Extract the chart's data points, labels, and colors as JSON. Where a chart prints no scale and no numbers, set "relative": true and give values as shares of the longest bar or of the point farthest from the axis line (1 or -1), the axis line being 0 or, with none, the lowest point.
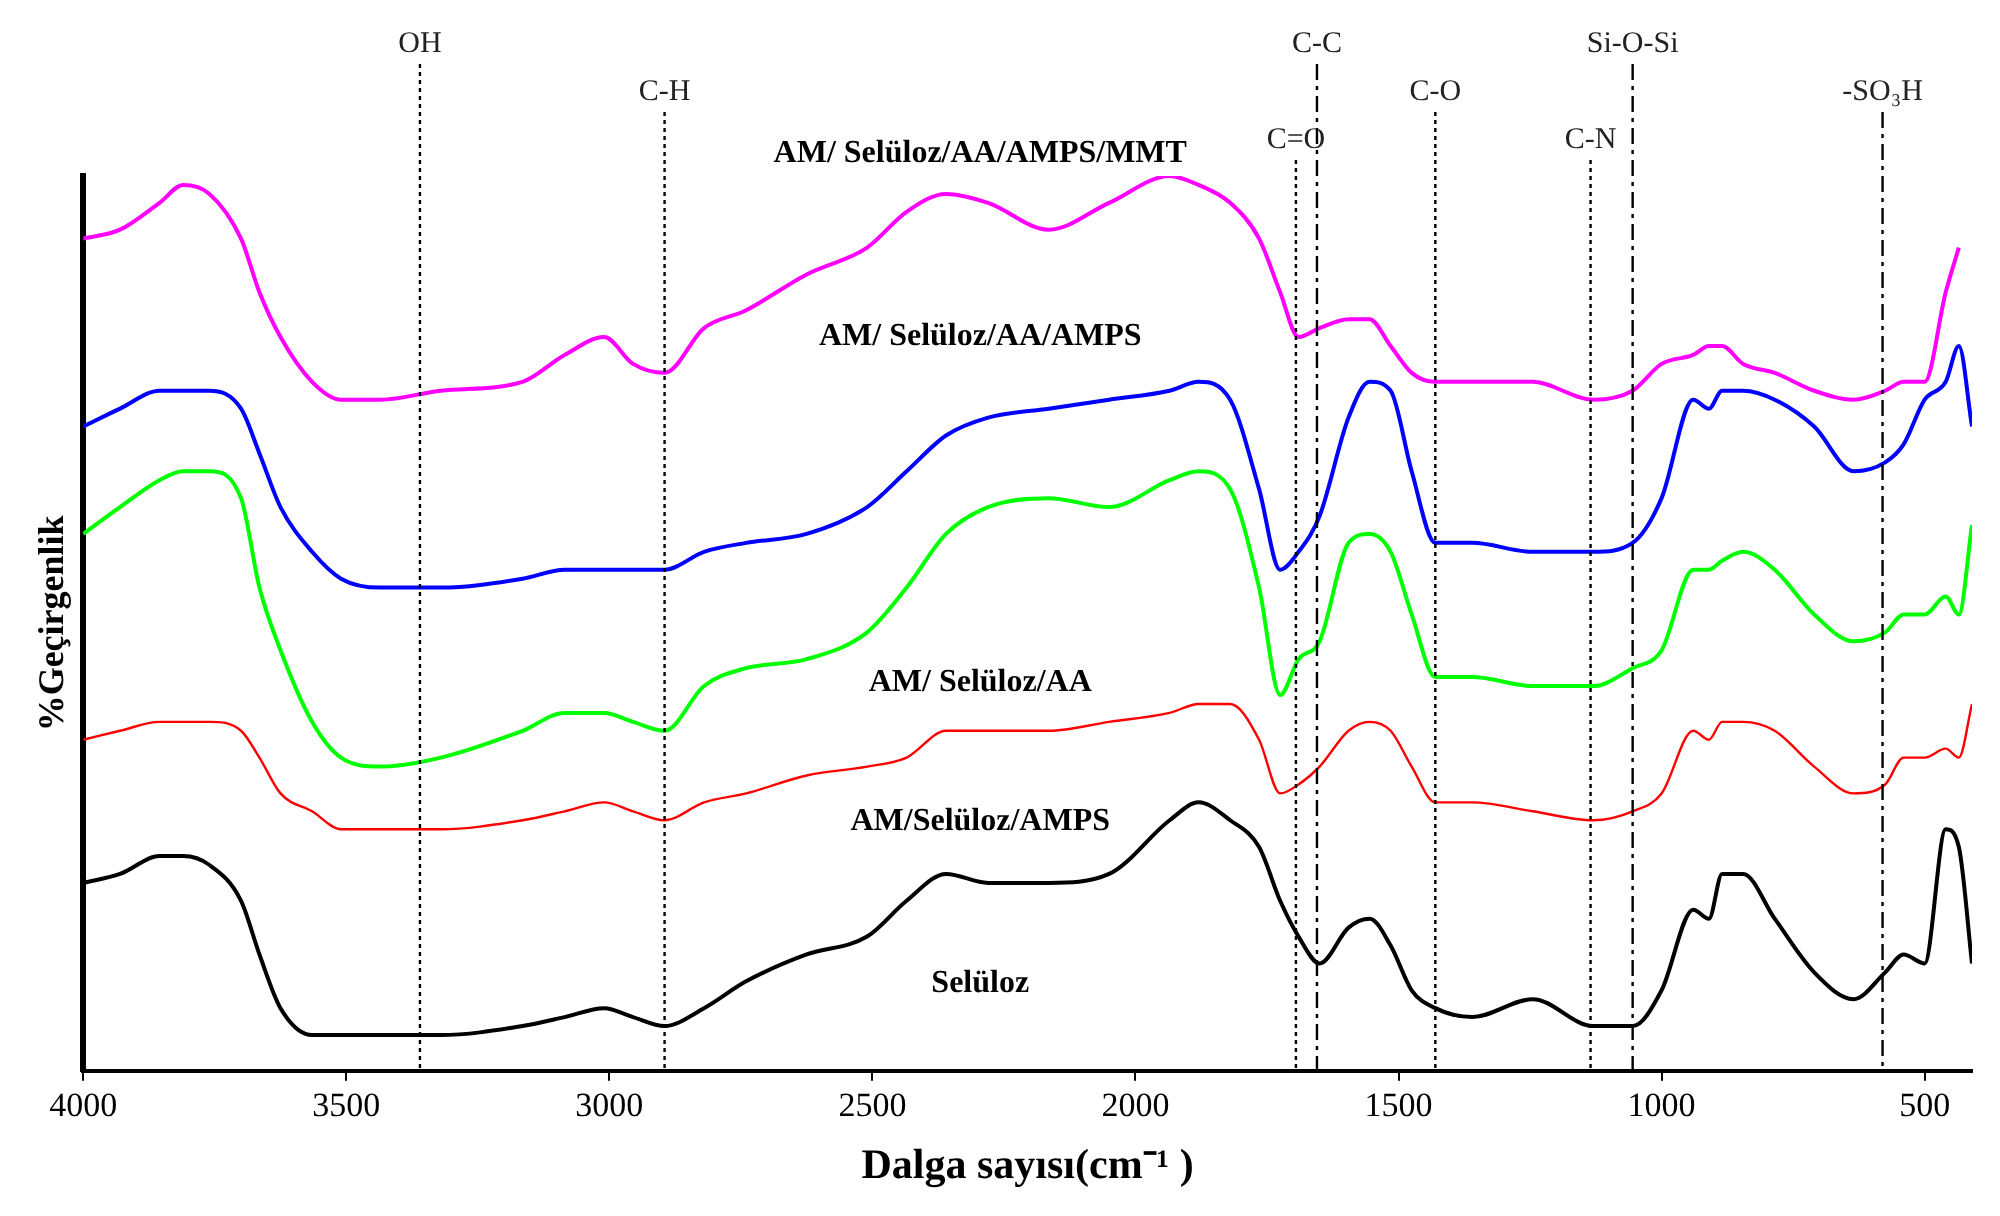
{
  "chart_data": {
    "type": "line",
    "relative": true,
    "xlabel": "Dalga sayısı(cm⁻¹ )",
    "ylabel": "%Geçirgenlik",
    "xlim": [
      4000,
      410
    ],
    "xticks": [
      4000,
      3500,
      3000,
      2500,
      2000,
      1500,
      1000,
      500
    ],
    "grid": false,
    "legend": false,
    "marker": "none",
    "x": [
      4000,
      3930,
      3855,
      3810,
      3760,
      3700,
      3665,
      3625,
      3565,
      3510,
      3435,
      3320,
      3165,
      3085,
      3010,
      2955,
      2895,
      2820,
      2740,
      2625,
      2510,
      2435,
      2360,
      2280,
      2165,
      2050,
      1935,
      1880,
      1820,
      1765,
      1725,
      1690,
      1650,
      1595,
      1555,
      1515,
      1475,
      1430,
      1360,
      1245,
      1130,
      1055,
      1000,
      940,
      910,
      885,
      845,
      785,
      710,
      635,
      575,
      540,
      500,
      460,
      435,
      410
    ],
    "series": [
      {
        "name": "AM/ Selüloz/AA/AMPS/MMT",
        "color": "#ff00ff",
        "values": [
          0.93,
          0.94,
          0.97,
          0.99,
          0.98,
          0.93,
          0.87,
          0.82,
          0.77,
          0.75,
          0.75,
          0.76,
          0.77,
          0.8,
          0.82,
          0.79,
          0.78,
          0.83,
          0.85,
          0.89,
          0.92,
          0.96,
          0.98,
          0.97,
          0.94,
          0.97,
          1.0,
          0.99,
          0.97,
          0.93,
          0.87,
          0.82,
          0.83,
          0.84,
          0.84,
          0.81,
          0.78,
          0.77,
          0.77,
          0.77,
          0.75,
          0.76,
          0.79,
          0.8,
          0.81,
          0.81,
          0.79,
          0.78,
          0.76,
          0.75,
          0.76,
          0.77,
          0.77,
          0.87,
          0.92,
          null
        ]
      },
      {
        "name": "AM/ Selüloz/AA/AMPS",
        "color": "#0000ff",
        "values": [
          0.72,
          0.74,
          0.76,
          0.76,
          0.76,
          0.74,
          0.69,
          0.63,
          0.58,
          0.55,
          0.54,
          0.54,
          0.55,
          0.56,
          0.56,
          0.56,
          0.56,
          0.58,
          0.59,
          0.6,
          0.63,
          0.67,
          0.71,
          0.73,
          0.74,
          0.75,
          0.76,
          0.77,
          0.75,
          0.65,
          0.56,
          0.58,
          0.62,
          0.73,
          0.77,
          0.76,
          0.67,
          0.59,
          0.59,
          0.58,
          0.58,
          0.59,
          0.64,
          0.75,
          0.74,
          0.76,
          0.76,
          0.75,
          0.72,
          0.67,
          0.68,
          0.7,
          0.75,
          0.77,
          0.81,
          0.72
        ]
      },
      {
        "name": "AM/ Selüloz/AA",
        "color": "#00ff00",
        "values": [
          0.6,
          0.63,
          0.66,
          0.67,
          0.67,
          0.64,
          0.54,
          0.47,
          0.39,
          0.35,
          0.34,
          0.35,
          0.38,
          0.4,
          0.4,
          0.39,
          0.38,
          0.43,
          0.45,
          0.46,
          0.49,
          0.54,
          0.6,
          0.63,
          0.64,
          0.63,
          0.66,
          0.67,
          0.65,
          0.54,
          0.42,
          0.46,
          0.48,
          0.59,
          0.6,
          0.58,
          0.51,
          0.44,
          0.44,
          0.43,
          0.43,
          0.45,
          0.47,
          0.56,
          0.56,
          0.57,
          0.58,
          0.56,
          0.51,
          0.48,
          0.49,
          0.51,
          0.51,
          0.53,
          0.51,
          0.61
        ]
      },
      {
        "name": "AM/Selüloz/AMPS",
        "color": "#ff0000",
        "values": [
          0.37,
          0.38,
          0.39,
          0.39,
          0.39,
          0.38,
          0.35,
          0.31,
          0.29,
          0.27,
          0.27,
          0.27,
          0.28,
          0.29,
          0.3,
          0.29,
          0.28,
          0.3,
          0.31,
          0.33,
          0.34,
          0.35,
          0.38,
          0.38,
          0.38,
          0.39,
          0.4,
          0.41,
          0.41,
          0.37,
          0.31,
          0.32,
          0.34,
          0.38,
          0.39,
          0.38,
          0.34,
          0.3,
          0.3,
          0.29,
          0.28,
          0.29,
          0.31,
          0.38,
          0.37,
          0.39,
          0.39,
          0.38,
          0.34,
          0.31,
          0.32,
          0.35,
          0.35,
          0.36,
          0.35,
          0.41
        ]
      },
      {
        "name": "Selüloz",
        "color": "#000000",
        "values": [
          0.21,
          0.22,
          0.24,
          0.24,
          0.23,
          0.19,
          0.13,
          0.07,
          0.04,
          0.04,
          0.04,
          0.04,
          0.05,
          0.06,
          0.07,
          0.06,
          0.05,
          0.07,
          0.1,
          0.13,
          0.15,
          0.19,
          0.22,
          0.21,
          0.21,
          0.22,
          0.28,
          0.3,
          0.28,
          0.25,
          0.19,
          0.15,
          0.12,
          0.16,
          0.17,
          0.14,
          0.09,
          0.07,
          0.06,
          0.08,
          0.05,
          0.05,
          0.09,
          0.18,
          0.17,
          0.22,
          0.22,
          0.17,
          0.11,
          0.08,
          0.11,
          0.13,
          0.12,
          0.27,
          0.25,
          0.12
        ]
      }
    ],
    "ref_lines": [
      {
        "axis": "x",
        "value": 3360,
        "label": "OH",
        "line_style": "dotted"
      },
      {
        "axis": "x",
        "value": 2895,
        "label": "C-H",
        "line_style": "dotted"
      },
      {
        "axis": "x",
        "value": 1695,
        "label": "C=O",
        "line_style": "dotted"
      },
      {
        "axis": "x",
        "value": 1655,
        "label": "C-C",
        "line_style": "dashed"
      },
      {
        "axis": "x",
        "value": 1430,
        "label": "C-O",
        "line_style": "dotted"
      },
      {
        "axis": "x",
        "value": 1135,
        "label": "C-N",
        "line_style": "dotted"
      },
      {
        "axis": "x",
        "value": 1055,
        "label": "Si-O-Si",
        "line_style": "dashed"
      },
      {
        "axis": "x",
        "value": 580,
        "label": "-SO₃H",
        "line_style": "dashed"
      }
    ]
  }
}
